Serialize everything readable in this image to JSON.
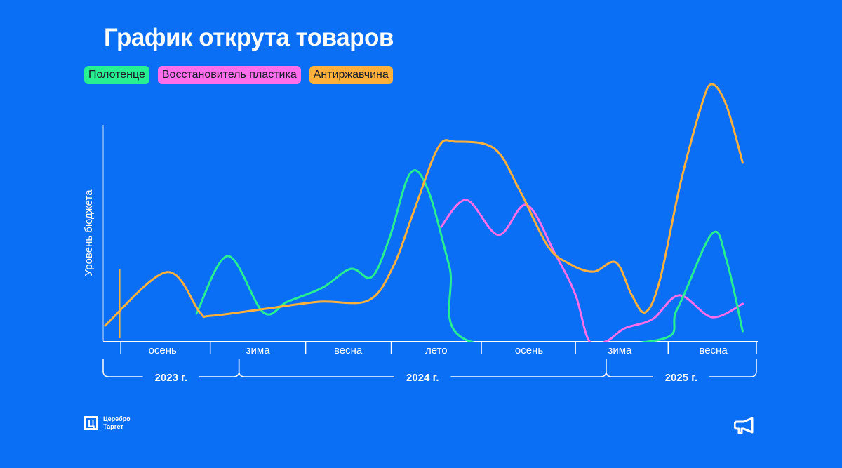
{
  "title": "График открута товаров",
  "legend": [
    {
      "label": "Полотенце",
      "color": "#27f093"
    },
    {
      "label": "Восстановитель пластика",
      "color": "#ff6eea"
    },
    {
      "label": "Антиржавчина",
      "color": "#ffb03b"
    }
  ],
  "logo": {
    "line1": "Церебро",
    "line2": "Таргет",
    "mark": "Ц"
  },
  "chart_data": {
    "type": "line",
    "title": "График открута товаров",
    "ylabel": "Уровень бюджета",
    "xlabel": "",
    "xlim": [
      0,
      100
    ],
    "ylim": [
      0,
      100
    ],
    "season_labels": [
      {
        "label": "осень",
        "x": 9.1
      },
      {
        "label": "зима",
        "x": 23.7
      },
      {
        "label": "весна",
        "x": 37.5
      },
      {
        "label": "лето",
        "x": 51.0
      },
      {
        "label": "осень",
        "x": 65.2
      },
      {
        "label": "зима",
        "x": 79.1
      },
      {
        "label": "весна",
        "x": 93.4
      }
    ],
    "season_ticks": [
      2.7,
      16.4,
      31.0,
      44.1,
      57.9,
      72.3,
      86.5,
      100
    ],
    "years": [
      {
        "label": "2023 г.",
        "from": 0,
        "to": 20.8
      },
      {
        "label": "2024 г.",
        "from": 20.8,
        "to": 77.0
      },
      {
        "label": "2025 г.",
        "from": 77.0,
        "to": 100
      }
    ],
    "marker_x": 2.5,
    "series": [
      {
        "name": "Антиржавчина",
        "color": "#ffb03b",
        "points": [
          [
            0.3,
            6
          ],
          [
            9.7,
            26.8
          ],
          [
            14.8,
            11.2
          ],
          [
            16.4,
            9.8
          ],
          [
            25.0,
            12.6
          ],
          [
            33.1,
            15.3
          ],
          [
            40.6,
            15.8
          ],
          [
            44.4,
            29
          ],
          [
            47.6,
            50.8
          ],
          [
            51.3,
            75.4
          ],
          [
            54.0,
            77.6
          ],
          [
            59.9,
            74.9
          ],
          [
            63.7,
            59
          ],
          [
            68.0,
            37.2
          ],
          [
            71.2,
            30.3
          ],
          [
            75.0,
            27
          ],
          [
            78.5,
            30.6
          ],
          [
            80.9,
            18
          ],
          [
            83.0,
            11.2
          ],
          [
            85.2,
            23.5
          ],
          [
            88.4,
            61.7
          ],
          [
            91.6,
            91.8
          ],
          [
            93.2,
            100
          ],
          [
            95.4,
            91.8
          ],
          [
            97.9,
            69.4
          ]
        ]
      },
      {
        "name": "Полотенце",
        "color": "#27f093",
        "points": [
          [
            14.3,
            10.7
          ],
          [
            19.1,
            33.1
          ],
          [
            24.5,
            11.2
          ],
          [
            28.2,
            15.3
          ],
          [
            33.6,
            20.8
          ],
          [
            37.9,
            28.1
          ],
          [
            41.1,
            24.9
          ],
          [
            43.8,
            39.9
          ],
          [
            47.0,
            65.3
          ],
          [
            49.7,
            59
          ],
          [
            53.0,
            29
          ],
          [
            56.0,
            0
          ],
          [
            84.1,
            0
          ],
          [
            87.9,
            12.6
          ],
          [
            93.2,
            41.8
          ],
          [
            95.4,
            31.7
          ],
          [
            97.9,
            3.8
          ]
        ]
      },
      {
        "name": "Восстановитель пластика",
        "color": "#ff6eea",
        "points": [
          [
            51.6,
            44
          ],
          [
            55.6,
            54.9
          ],
          [
            60.5,
            41.3
          ],
          [
            64.8,
            53
          ],
          [
            69.1,
            34.4
          ],
          [
            72.3,
            18
          ],
          [
            74.4,
            0
          ],
          [
            77.1,
            0
          ],
          [
            79.8,
            4.9
          ],
          [
            84.1,
            8.5
          ],
          [
            88.2,
            17.8
          ],
          [
            93.2,
            9.3
          ],
          [
            97.9,
            14.5
          ]
        ]
      }
    ]
  }
}
